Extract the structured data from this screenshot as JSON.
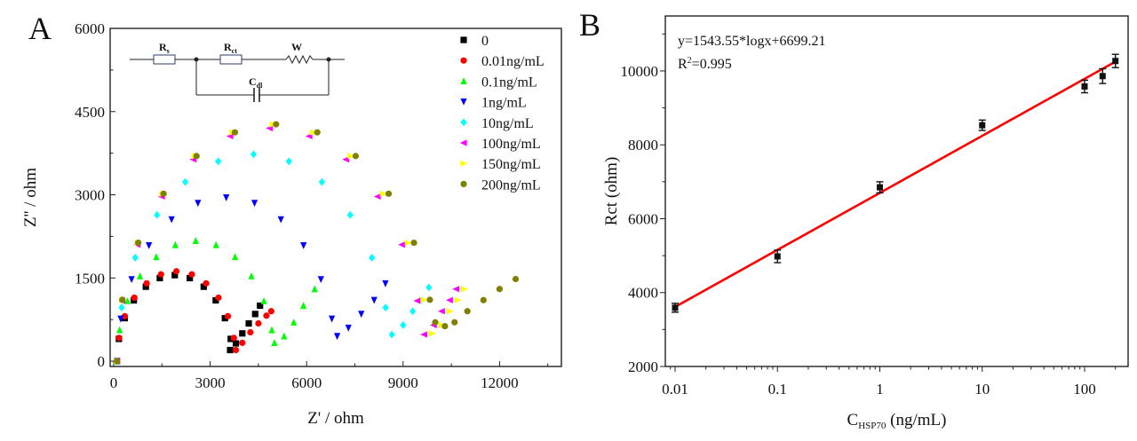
{
  "chart_data": [
    {
      "panel_label": "A",
      "type": "scatter",
      "xlabel": "Z' / ohm",
      "ylabel": "Z'' / ohm",
      "xlim": [
        -100,
        13900
      ],
      "ylim": [
        -100,
        6000
      ],
      "xticks": [
        0,
        3000,
        6000,
        9000,
        12000
      ],
      "yticks": [
        0,
        1500,
        3000,
        4500,
        6000
      ],
      "grid": false,
      "legend_placement": "top-right",
      "inset_circuit": {
        "elements": [
          {
            "symbol": "R",
            "sub": "s"
          },
          {
            "symbol": "R",
            "sub": "ct"
          },
          {
            "symbol": "W",
            "sub": ""
          },
          {
            "symbol": "C",
            "sub": "dl"
          }
        ]
      },
      "series": [
        {
          "name": "0",
          "marker": "square",
          "color": "#000000",
          "points": [
            [
              100,
              0
            ],
            [
              161,
              401
            ],
            [
              341,
              775
            ],
            [
              627,
              1096
            ],
            [
              1000,
              1342
            ],
            [
              1434,
              1497
            ],
            [
              1900,
              1550
            ],
            [
              2366,
              1497
            ],
            [
              2800,
              1342
            ],
            [
              3173,
              1096
            ],
            [
              3459,
              775
            ],
            [
              3639,
              401
            ],
            [
              3620,
              200
            ],
            [
              3800,
              320
            ],
            [
              4000,
              500
            ],
            [
              4200,
              680
            ],
            [
              4400,
              850
            ],
            [
              4550,
              1000
            ]
          ]
        },
        {
          "name": "0.01ng/mL",
          "marker": "circle",
          "color": "#ff0000",
          "points": [
            [
              100,
              0
            ],
            [
              163,
              419
            ],
            [
              348,
              810
            ],
            [
              642,
              1145
            ],
            [
              1025,
              1403
            ],
            [
              1471,
              1565
            ],
            [
              1950,
              1620
            ],
            [
              2429,
              1565
            ],
            [
              2875,
              1403
            ],
            [
              3258,
              1145
            ],
            [
              3552,
              810
            ],
            [
              3737,
              419
            ],
            [
              3800,
              200
            ],
            [
              4000,
              330
            ],
            [
              4250,
              520
            ],
            [
              4500,
              680
            ],
            [
              4750,
              820
            ],
            [
              4900,
              900
            ]
          ]
        },
        {
          "name": "0.1ng/mL",
          "marker": "triangle-up",
          "color": "#00ff00",
          "points": [
            [
              100,
              0
            ],
            [
              183,
              562
            ],
            [
              428,
              1085
            ],
            [
              818,
              1534
            ],
            [
              1325,
              1879
            ],
            [
              1916,
              2096
            ],
            [
              2550,
              2170
            ],
            [
              3184,
              2096
            ],
            [
              3775,
              1879
            ],
            [
              4282,
              1534
            ],
            [
              4672,
              1085
            ],
            [
              4917,
              562
            ],
            [
              5000,
              330
            ],
            [
              5300,
              450
            ],
            [
              5600,
              700
            ],
            [
              5900,
              1000
            ],
            [
              6250,
              1300
            ]
          ]
        },
        {
          "name": "1ng/mL",
          "marker": "triangle-down",
          "color": "#0000ff",
          "points": [
            [
              100,
              0
            ],
            [
              216,
              764
            ],
            [
              556,
              1475
            ],
            [
              1096,
              2086
            ],
            [
              1800,
              2555
            ],
            [
              2620,
              2850
            ],
            [
              3500,
              2950
            ],
            [
              4380,
              2850
            ],
            [
              5200,
              2555
            ],
            [
              5904,
              2086
            ],
            [
              6444,
              1475
            ],
            [
              6784,
              764
            ],
            [
              6950,
              450
            ],
            [
              7300,
              600
            ],
            [
              7700,
              850
            ],
            [
              8100,
              1100
            ],
            [
              8450,
              1400
            ]
          ]
        },
        {
          "name": "10ng/mL",
          "marker": "diamond",
          "color": "#00ffff",
          "points": [
            [
              100,
              0
            ],
            [
              245,
              966
            ],
            [
              670,
              1865
            ],
            [
              1345,
              2637
            ],
            [
              2225,
              3230
            ],
            [
              3250,
              3603
            ],
            [
              4350,
              3730
            ],
            [
              5450,
              3603
            ],
            [
              6475,
              3230
            ],
            [
              7355,
              2637
            ],
            [
              8030,
              1865
            ],
            [
              8455,
              966
            ],
            [
              8650,
              480
            ],
            [
              9000,
              650
            ],
            [
              9300,
              900
            ],
            [
              9550,
              1100
            ],
            [
              9800,
              1330
            ]
          ]
        },
        {
          "name": "100ng/mL",
          "marker": "triangle-left",
          "color": "#ff00ff",
          "points": [
            [
              100,
              0
            ],
            [
              262,
              1088
            ],
            [
              737,
              2100
            ],
            [
              1492,
              2969
            ],
            [
              2475,
              3637
            ],
            [
              3620,
              4057
            ],
            [
              4850,
              4200
            ],
            [
              6080,
              4057
            ],
            [
              7225,
              3637
            ],
            [
              8208,
              2969
            ],
            [
              8963,
              2100
            ],
            [
              9438,
              1088
            ],
            [
              9650,
              480
            ],
            [
              9950,
              650
            ],
            [
              10200,
              900
            ],
            [
              10450,
              1100
            ],
            [
              10650,
              1300
            ]
          ]
        },
        {
          "name": "150ng/mL",
          "marker": "triangle-right",
          "color": "#ffff00",
          "points": [
            [
              100,
              0
            ],
            [
              265,
              1106
            ],
            [
              750,
              2135
            ],
            [
              1521,
              3019
            ],
            [
              2525,
              3698
            ],
            [
              3694,
              4125
            ],
            [
              4950,
              4270
            ],
            [
              6206,
              4125
            ],
            [
              7375,
              3698
            ],
            [
              8379,
              3019
            ],
            [
              9150,
              2135
            ],
            [
              9635,
              1106
            ],
            [
              9900,
              500
            ],
            [
              10200,
              650
            ],
            [
              10450,
              900
            ],
            [
              10700,
              1100
            ],
            [
              10900,
              1300
            ]
          ]
        },
        {
          "name": "200ng/mL",
          "marker": "circle",
          "color": "#808000",
          "points": [
            [
              100,
              0
            ],
            [
              268,
              1106
            ],
            [
              763,
              2135
            ],
            [
              1550,
              3019
            ],
            [
              2575,
              3698
            ],
            [
              3769,
              4125
            ],
            [
              5050,
              4270
            ],
            [
              6331,
              4125
            ],
            [
              7525,
              3698
            ],
            [
              8550,
              3019
            ],
            [
              9337,
              2135
            ],
            [
              9832,
              1106
            ],
            [
              10000,
              700
            ],
            [
              10300,
              630
            ],
            [
              10600,
              700
            ],
            [
              11000,
              900
            ],
            [
              11500,
              1100
            ],
            [
              12000,
              1300
            ],
            [
              12500,
              1480
            ]
          ]
        }
      ]
    },
    {
      "panel_label": "B",
      "type": "scatter",
      "xlabel_main": "C",
      "xlabel_sub": "HSP70",
      "xlabel_unit": " (ng/mL)",
      "ylabel": "Rct (ohm)",
      "xscale": "log",
      "xlim": [
        0.008,
        267
      ],
      "ylim": [
        2000,
        11500
      ],
      "xticks": [
        0.01,
        0.1,
        1,
        10,
        100
      ],
      "xtick_labels": [
        "0.01",
        "0.1",
        "1",
        "10",
        "100"
      ],
      "yticks": [
        2000,
        4000,
        6000,
        8000,
        10000
      ],
      "grid": false,
      "equation": "y=1543.55*logx+6699.21",
      "r2_label": "R",
      "r2_sup": "2",
      "r2_value": "=0.995",
      "fit": {
        "slope": 1543.55,
        "intercept": 6699.21,
        "color": "#ff0000"
      },
      "points": [
        {
          "x": 0.01,
          "y": 3590,
          "err": 120
        },
        {
          "x": 0.1,
          "y": 4980,
          "err": 170
        },
        {
          "x": 1,
          "y": 6850,
          "err": 150
        },
        {
          "x": 10,
          "y": 8530,
          "err": 140
        },
        {
          "x": 100,
          "y": 9580,
          "err": 170
        },
        {
          "x": 150,
          "y": 9860,
          "err": 200
        },
        {
          "x": 200,
          "y": 10270,
          "err": 180
        }
      ]
    }
  ]
}
